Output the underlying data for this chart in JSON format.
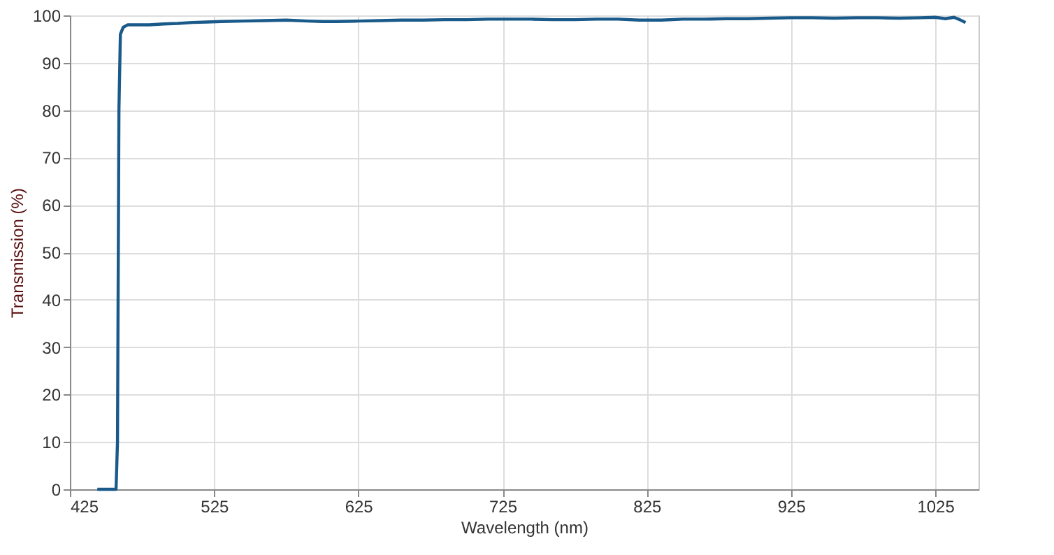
{
  "chart_data": {
    "type": "line",
    "xlabel": "Wavelength (nm)",
    "ylabel": "Transmission (%)",
    "xlim": [
      425,
      1055
    ],
    "xticks": [
      425,
      525,
      625,
      725,
      825,
      925,
      1025
    ],
    "ylim": [
      0,
      100
    ],
    "yticks": [
      0,
      10,
      20,
      30,
      40,
      50,
      60,
      70,
      80,
      90,
      100
    ],
    "grid": true,
    "legend": false,
    "marker": "none",
    "line_style": "solid",
    "series": [
      {
        "color": "#1a5a8a",
        "x": [
          444,
          452,
          457,
          458,
          459,
          460,
          462,
          465,
          470,
          480,
          490,
          500,
          510,
          520,
          530,
          545,
          560,
          575,
          590,
          600,
          610,
          625,
          640,
          655,
          670,
          685,
          700,
          715,
          730,
          745,
          760,
          775,
          790,
          805,
          820,
          835,
          850,
          865,
          880,
          895,
          910,
          925,
          940,
          955,
          970,
          985,
          1000,
          1015,
          1025,
          1032,
          1038,
          1042,
          1046
        ],
        "values": [
          0,
          0,
          0,
          10,
          80,
          96,
          97.5,
          98,
          98,
          98,
          98.2,
          98.3,
          98.5,
          98.6,
          98.7,
          98.8,
          98.9,
          99,
          98.8,
          98.7,
          98.7,
          98.8,
          98.9,
          99,
          99,
          99.1,
          99.1,
          99.2,
          99.2,
          99.2,
          99.1,
          99.1,
          99.2,
          99.2,
          99,
          99,
          99.2,
          99.2,
          99.3,
          99.3,
          99.4,
          99.5,
          99.5,
          99.4,
          99.5,
          99.5,
          99.4,
          99.5,
          99.6,
          99.3,
          99.6,
          99.1,
          98.5
        ]
      }
    ]
  }
}
